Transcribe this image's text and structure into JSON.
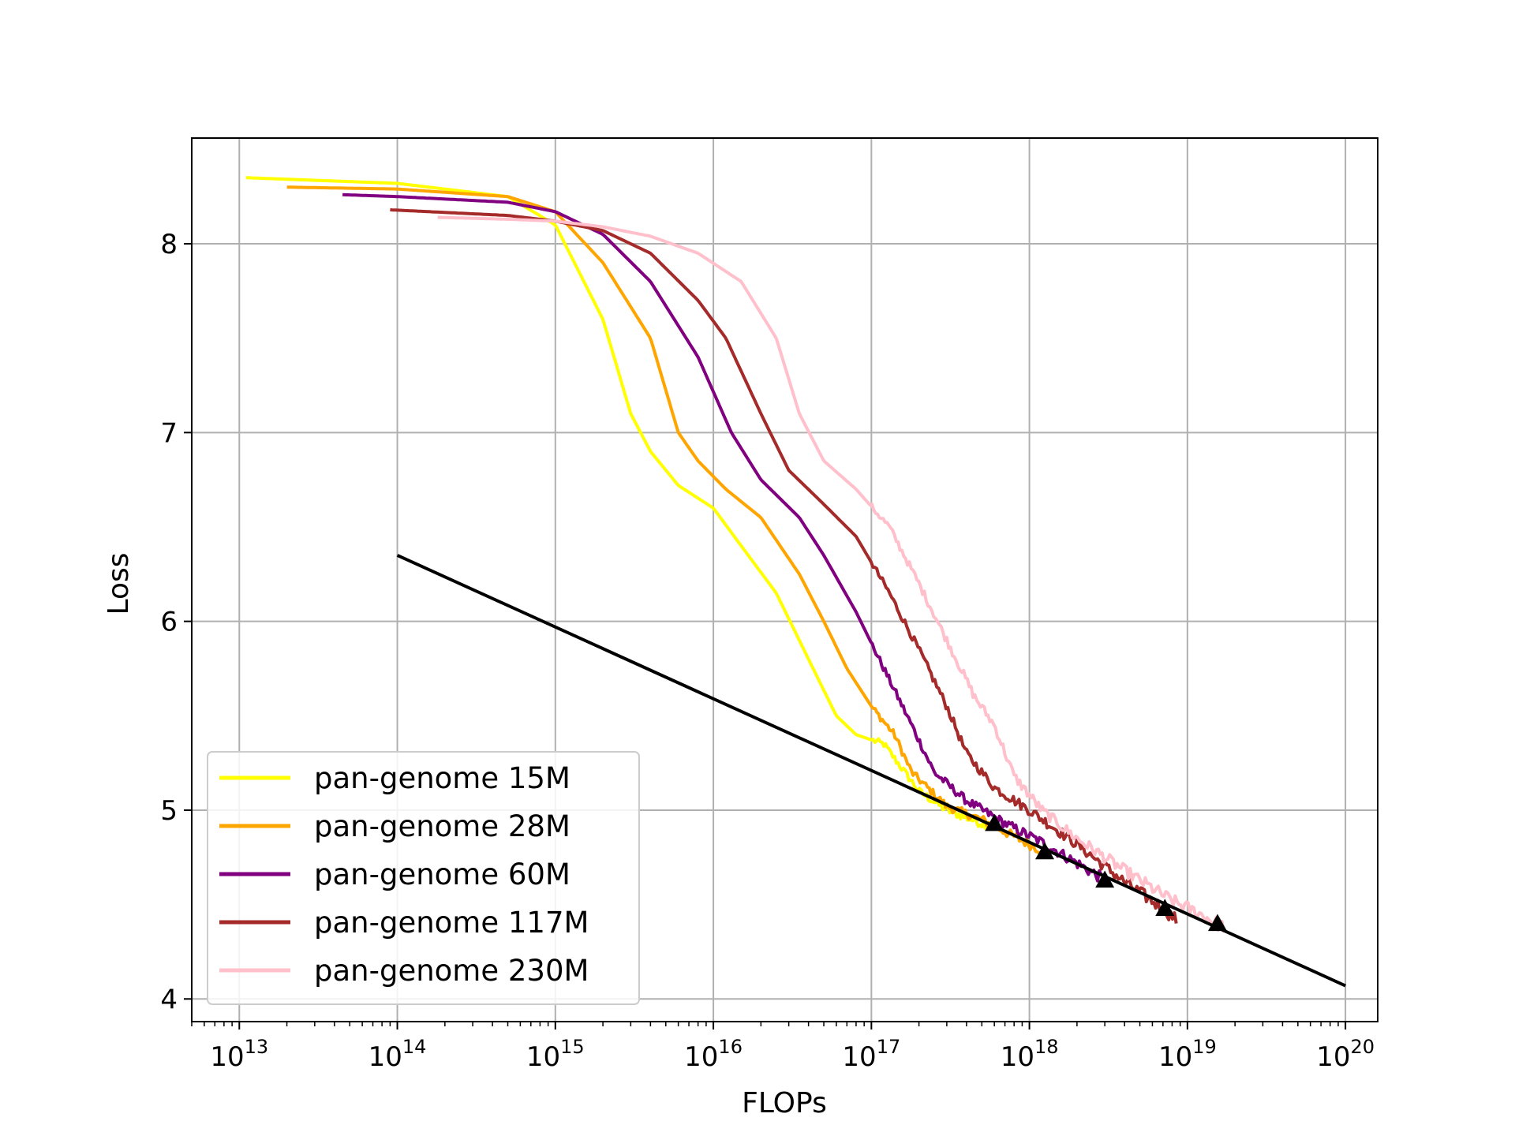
{
  "chart_data": {
    "type": "line",
    "xlabel": "FLOPs",
    "ylabel": "Loss",
    "xscale": "log",
    "xlim": [
      5000000000000.0,
      1.6e+20
    ],
    "ylim": [
      3.88,
      8.56
    ],
    "grid": true,
    "legend_position": "lower-left",
    "x_ticks": [
      {
        "value": 10000000000000.0,
        "base": "10",
        "exp": "13"
      },
      {
        "value": 100000000000000.0,
        "base": "10",
        "exp": "14"
      },
      {
        "value": 1000000000000000.0,
        "base": "10",
        "exp": "15"
      },
      {
        "value": 1e+16,
        "base": "10",
        "exp": "16"
      },
      {
        "value": 1e+17,
        "base": "10",
        "exp": "17"
      },
      {
        "value": 1e+18,
        "base": "10",
        "exp": "18"
      },
      {
        "value": 1e+19,
        "base": "10",
        "exp": "19"
      },
      {
        "value": 1e+20,
        "base": "10",
        "exp": "20"
      }
    ],
    "y_ticks": [
      {
        "value": 4,
        "label": "4"
      },
      {
        "value": 5,
        "label": "5"
      },
      {
        "value": 6,
        "label": "6"
      },
      {
        "value": 7,
        "label": "7"
      },
      {
        "value": 8,
        "label": "8"
      }
    ],
    "series": [
      {
        "name": "pan-genome 15M",
        "color": "#ffff00",
        "noisy_from": 1e+17,
        "points": [
          [
            11000000000000.0,
            8.35
          ],
          [
            100000000000000.0,
            8.32
          ],
          [
            500000000000000.0,
            8.25
          ],
          [
            1000000000000000.0,
            8.1
          ],
          [
            2000000000000000.0,
            7.6
          ],
          [
            3000000000000000.0,
            7.1
          ],
          [
            4000000000000000.0,
            6.9
          ],
          [
            6000000000000000.0,
            6.72
          ],
          [
            1e+16,
            6.6
          ],
          [
            1.5e+16,
            6.4
          ],
          [
            2.5e+16,
            6.15
          ],
          [
            4e+16,
            5.8
          ],
          [
            6e+16,
            5.5
          ],
          [
            8e+16,
            5.4
          ],
          [
            1.2e+17,
            5.35
          ],
          [
            2e+17,
            5.1
          ],
          [
            3e+17,
            5.0
          ],
          [
            5e+17,
            4.93
          ],
          [
            6e+17,
            4.92
          ]
        ]
      },
      {
        "name": "pan-genome 28M",
        "color": "#ffa500",
        "noisy_from": 1e+17,
        "points": [
          [
            20000000000000.0,
            8.3
          ],
          [
            100000000000000.0,
            8.29
          ],
          [
            500000000000000.0,
            8.25
          ],
          [
            1000000000000000.0,
            8.17
          ],
          [
            2000000000000000.0,
            7.9
          ],
          [
            4000000000000000.0,
            7.5
          ],
          [
            6000000000000000.0,
            7.0
          ],
          [
            8000000000000000.0,
            6.85
          ],
          [
            1.2e+16,
            6.7
          ],
          [
            2e+16,
            6.55
          ],
          [
            3.5e+16,
            6.25
          ],
          [
            5e+16,
            6.0
          ],
          [
            7e+16,
            5.75
          ],
          [
            1e+17,
            5.55
          ],
          [
            1.4e+17,
            5.4
          ],
          [
            1.8e+17,
            5.2
          ],
          [
            3e+17,
            5.02
          ],
          [
            5e+17,
            4.95
          ],
          [
            8e+17,
            4.86
          ],
          [
            1.25e+18,
            4.78
          ]
        ]
      },
      {
        "name": "pan-genome 60M",
        "color": "#800080",
        "noisy_from": 1e+17,
        "points": [
          [
            45000000000000.0,
            8.26
          ],
          [
            100000000000000.0,
            8.25
          ],
          [
            500000000000000.0,
            8.22
          ],
          [
            1000000000000000.0,
            8.17
          ],
          [
            2000000000000000.0,
            8.05
          ],
          [
            4000000000000000.0,
            7.8
          ],
          [
            8000000000000000.0,
            7.4
          ],
          [
            1.3e+16,
            7.0
          ],
          [
            2e+16,
            6.75
          ],
          [
            3.5e+16,
            6.55
          ],
          [
            5e+16,
            6.35
          ],
          [
            8e+16,
            6.05
          ],
          [
            1.2e+17,
            5.75
          ],
          [
            1.8e+17,
            5.45
          ],
          [
            2.5e+17,
            5.2
          ],
          [
            4e+17,
            5.05
          ],
          [
            7e+17,
            4.93
          ],
          [
            1.2e+18,
            4.83
          ],
          [
            2e+18,
            4.72
          ],
          [
            3e+18,
            4.63
          ]
        ]
      },
      {
        "name": "pan-genome 117M",
        "color": "#a52a2a",
        "noisy_from": 1e+17,
        "points": [
          [
            90000000000000.0,
            8.18
          ],
          [
            500000000000000.0,
            8.15
          ],
          [
            1000000000000000.0,
            8.12
          ],
          [
            2000000000000000.0,
            8.07
          ],
          [
            4000000000000000.0,
            7.95
          ],
          [
            8000000000000000.0,
            7.7
          ],
          [
            1.2e+16,
            7.5
          ],
          [
            2e+16,
            7.1
          ],
          [
            3e+16,
            6.8
          ],
          [
            5e+16,
            6.62
          ],
          [
            8e+16,
            6.45
          ],
          [
            1.3e+17,
            6.15
          ],
          [
            2e+17,
            5.85
          ],
          [
            3e+17,
            5.55
          ],
          [
            4e+17,
            5.3
          ],
          [
            6e+17,
            5.12
          ],
          [
            1e+18,
            5.0
          ],
          [
            2e+18,
            4.82
          ],
          [
            4e+18,
            4.62
          ],
          [
            7e+18,
            4.48
          ],
          [
            8.5e+18,
            4.42
          ]
        ]
      },
      {
        "name": "pan-genome 230M",
        "color": "#ffc0cb",
        "noisy_from": 1e+17,
        "points": [
          [
            180000000000000.0,
            8.14
          ],
          [
            500000000000000.0,
            8.13
          ],
          [
            1000000000000000.0,
            8.12
          ],
          [
            2000000000000000.0,
            8.09
          ],
          [
            4000000000000000.0,
            8.04
          ],
          [
            8000000000000000.0,
            7.95
          ],
          [
            1.5e+16,
            7.8
          ],
          [
            2.5e+16,
            7.5
          ],
          [
            3.5e+16,
            7.1
          ],
          [
            5e+16,
            6.85
          ],
          [
            8e+16,
            6.7
          ],
          [
            1.3e+17,
            6.5
          ],
          [
            2e+17,
            6.2
          ],
          [
            3e+17,
            5.9
          ],
          [
            4.5e+17,
            5.6
          ],
          [
            6e+17,
            5.45
          ],
          [
            8e+17,
            5.18
          ],
          [
            1.2e+18,
            5.0
          ],
          [
            2e+18,
            4.85
          ],
          [
            4e+18,
            4.68
          ],
          [
            8e+18,
            4.52
          ],
          [
            1.2e+19,
            4.45
          ],
          [
            1.7e+19,
            4.38
          ]
        ]
      }
    ],
    "fit_line": {
      "color": "#000000",
      "points": [
        [
          100000000000000.0,
          6.35
        ],
        [
          1e+20,
          4.07
        ]
      ]
    },
    "compute_optimal_points": [
      [
        6e+17,
        4.93
      ],
      [
        1.25e+18,
        4.78
      ],
      [
        3e+18,
        4.63
      ],
      [
        7.2e+18,
        4.48
      ],
      [
        1.55e+19,
        4.4
      ]
    ]
  }
}
